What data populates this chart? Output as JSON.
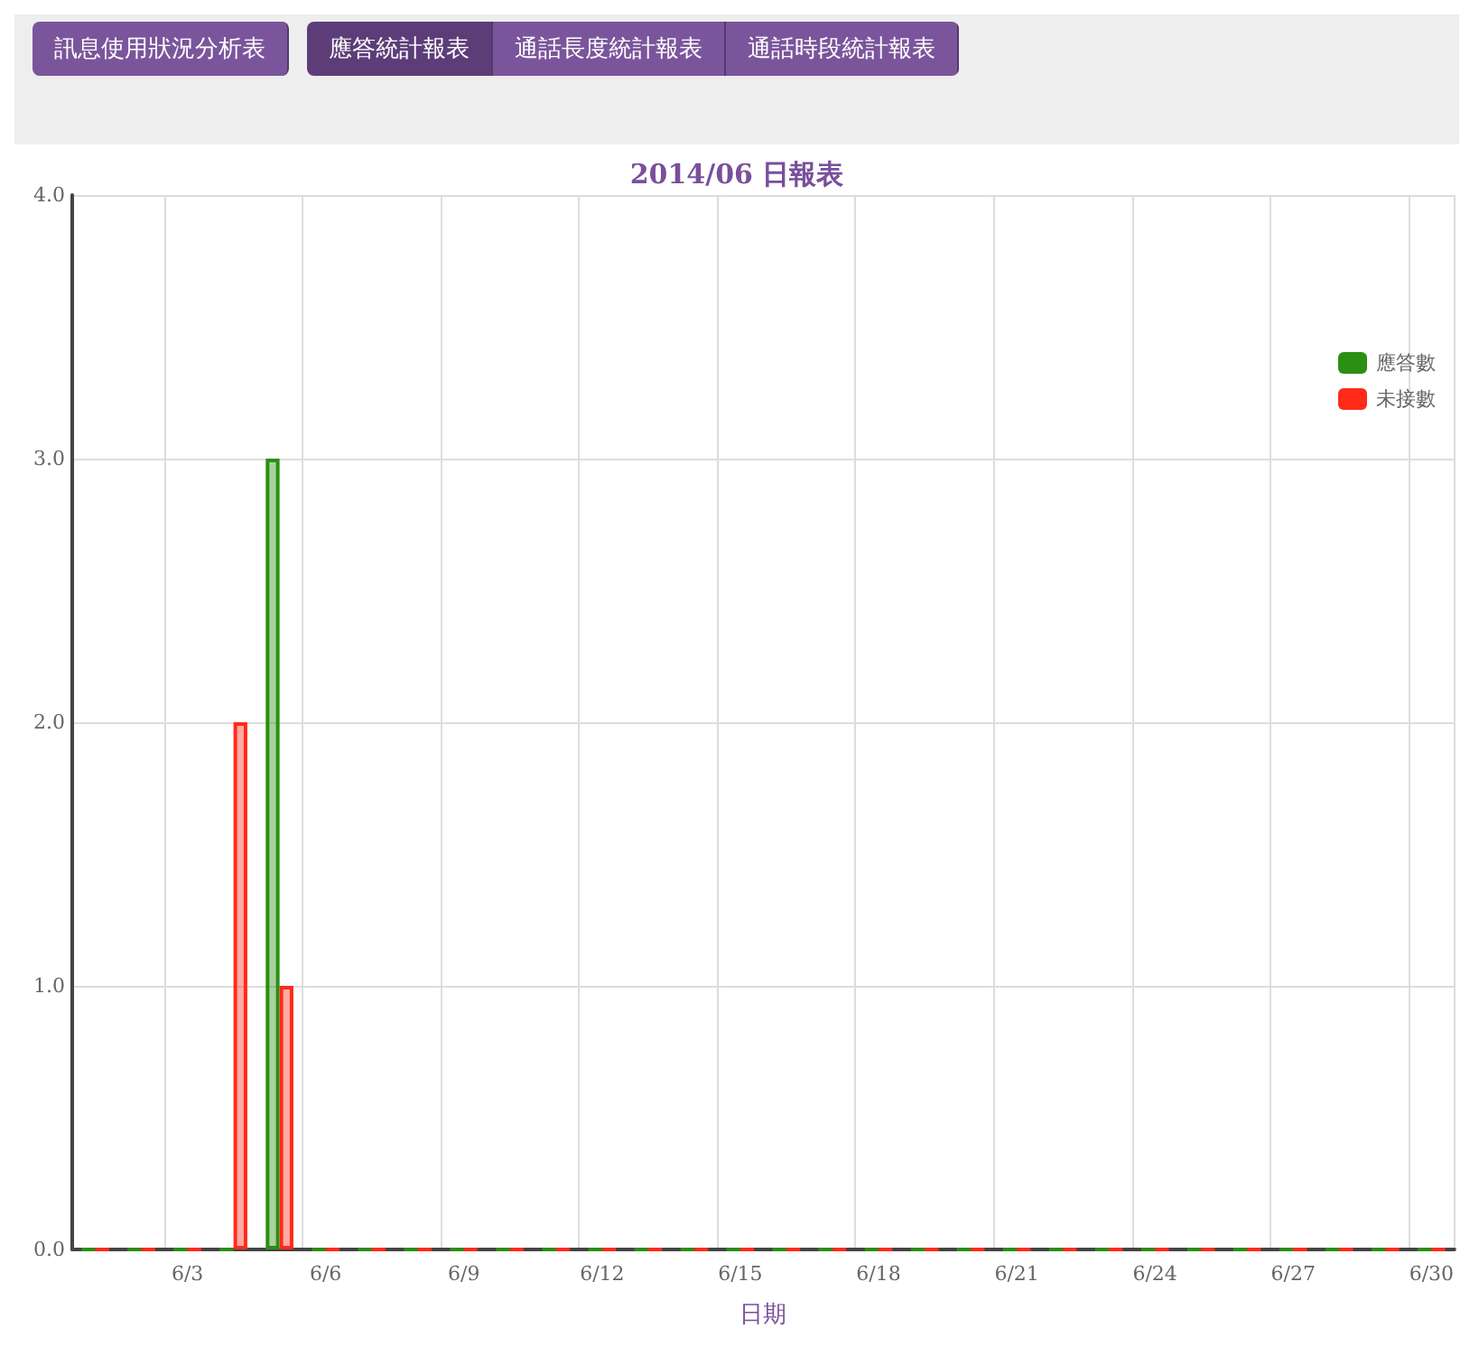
{
  "chart_data": {
    "type": "bar",
    "title": "2014/06 日報表",
    "xlabel": "日期",
    "annotations": [
      "訊息使用狀況分析表",
      "應答統計報表",
      "通話長度統計報表",
      "通話時段統計報表"
    ],
    "categories": [
      null,
      null,
      "6/3",
      null,
      null,
      "6/6",
      null,
      null,
      "6/9",
      null,
      null,
      "6/12",
      null,
      null,
      "6/15",
      null,
      null,
      "6/18",
      null,
      null,
      "6/21",
      null,
      null,
      "6/24",
      null,
      null,
      "6/27",
      null,
      null,
      "6/30"
    ],
    "series": [
      {
        "name": "應答數",
        "color": "#2a8f12",
        "values": [
          0,
          0,
          0,
          0,
          3,
          0,
          0,
          0,
          0,
          0,
          0,
          0,
          0,
          0,
          0,
          0,
          0,
          0,
          0,
          0,
          0,
          0,
          0,
          0,
          0,
          0,
          0,
          0,
          0,
          0
        ]
      },
      {
        "name": "未接數",
        "color": "#ff2a1a",
        "values": [
          0,
          0,
          0,
          2,
          1,
          0,
          0,
          0,
          0,
          0,
          0,
          0,
          0,
          0,
          0,
          0,
          0,
          0,
          0,
          0,
          0,
          0,
          0,
          0,
          0,
          0,
          0,
          0,
          0,
          0
        ]
      }
    ],
    "ylim": [
      0,
      4
    ],
    "yticks": [
      {
        "value": 0,
        "label": "0.0"
      },
      {
        "value": 1,
        "label": "1.0"
      },
      {
        "value": 2,
        "label": "2.0"
      },
      {
        "value": 3,
        "label": "3.0"
      },
      {
        "value": 4,
        "label": "4.0"
      }
    ],
    "grid": true,
    "legend": "top right"
  }
}
